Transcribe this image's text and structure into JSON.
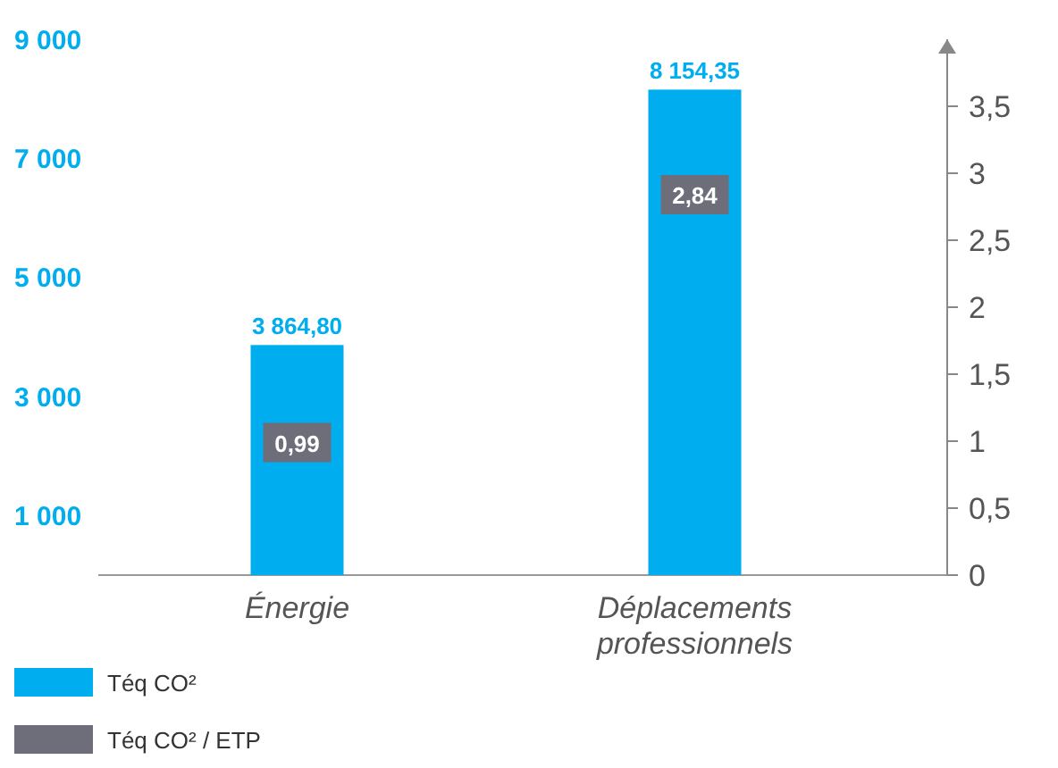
{
  "chart_data": {
    "type": "bar",
    "categories": [
      "Énergie",
      "Déplacements professionnels"
    ],
    "series": [
      {
        "name": "Téq CO²",
        "color": "#00aeef",
        "values": [
          3864.8,
          8154.35
        ],
        "value_labels": [
          "3 864,80",
          "8 154,35"
        ]
      },
      {
        "name": "Téq CO² / ETP",
        "color": "#6d6e7a",
        "type": "scatter",
        "axis": "y2",
        "marker": "square",
        "values": [
          0.99,
          2.84
        ],
        "value_labels": [
          "0,99",
          "2,84"
        ]
      }
    ],
    "ylim": [
      0,
      9000
    ],
    "yticks": [
      {
        "value": 1000,
        "label": "1 000"
      },
      {
        "value": 3000,
        "label": "3 000"
      },
      {
        "value": 5000,
        "label": "5 000"
      },
      {
        "value": 7000,
        "label": "7 000"
      },
      {
        "value": 9000,
        "label": "9 000"
      }
    ],
    "y2lim": [
      0,
      4
    ],
    "y2ticks": [
      0,
      {
        "value": 0.5,
        "label": "0,5"
      },
      1,
      {
        "value": 1.5,
        "label": "1,5"
      },
      2,
      {
        "value": 2.5,
        "label": "2,5"
      },
      3,
      {
        "value": 3.5,
        "label": "3,5"
      }
    ],
    "grid": false,
    "legend": "bottom left"
  }
}
